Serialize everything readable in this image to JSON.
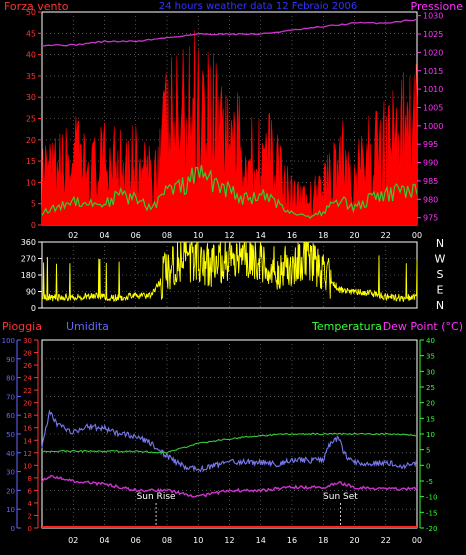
{
  "header": {
    "left_label": "Forza vento",
    "center_title": "24 hours weather data  12 Febraio 2006",
    "right_label": "Pressione"
  },
  "direction_panel": {
    "compass_letters": [
      "N",
      "W",
      "S",
      "E",
      "N"
    ]
  },
  "bottom_header": {
    "pioggia": "Pioggia",
    "umidita": "Umidita",
    "temperatura": "Temperatura",
    "dewpoint": "Dew Point (°C)"
  },
  "annotations": {
    "sunrise": "Sun Rise",
    "sunset": "Sun Set"
  },
  "colors": {
    "background": "#000000",
    "wind_red": "#ff0000",
    "gust_green": "#33cc33",
    "lull_white": "#ccffcc",
    "pressure_magenta": "#cc33cc",
    "direction_yellow": "#ffff00",
    "humidity_blue": "#7777ee",
    "temperature_green": "#33cc33",
    "dewpoint_magenta": "#cc33cc",
    "rain_red": "#ff2222",
    "grid": "#888888",
    "axis_left_red": "#ff3333",
    "axis_right_magenta": "#ff33ff",
    "axis_right_green": "#33ff33",
    "axis_blue": "#6666ff"
  },
  "chart_data": [
    {
      "type": "line",
      "title": "24 hours weather data  12 Febraio 2006",
      "x_tick_labels": [
        "02",
        "04",
        "06",
        "08",
        "10",
        "12",
        "14",
        "16",
        "18",
        "20",
        "22",
        "00"
      ],
      "y_left_ticks": [
        0,
        5,
        10,
        15,
        20,
        25,
        30,
        35,
        40,
        45,
        50
      ],
      "y_left_lim": [
        0,
        50
      ],
      "y_left_label": "Forza vento",
      "y_right_ticks": [
        975,
        980,
        985,
        990,
        995,
        1000,
        1005,
        1010,
        1015,
        1020,
        1025,
        1030
      ],
      "y_right_lim": [
        973,
        1031
      ],
      "y_right_label": "Pressione",
      "series": [
        {
          "name": "Pressione",
          "axis": "right",
          "hours": [
            0,
            2,
            4,
            6,
            8,
            10,
            12,
            14,
            16,
            18,
            20,
            22,
            24
          ],
          "values": [
            1022,
            1022,
            1023,
            1023,
            1024,
            1025,
            1025,
            1025,
            1026,
            1027,
            1028,
            1028,
            1029
          ]
        },
        {
          "axis": "left",
          "hours": [
            0,
            1,
            2,
            3,
            4,
            5,
            6,
            7,
            8,
            9,
            10,
            11,
            12,
            13,
            14,
            15,
            16,
            17,
            18,
            19,
            20,
            21,
            22,
            23,
            24
          ],
          "values": [
            12,
            14,
            18,
            14,
            16,
            20,
            16,
            12,
            26,
            28,
            34,
            30,
            24,
            18,
            20,
            16,
            8,
            6,
            10,
            18,
            12,
            18,
            22,
            24,
            26
          ]
        },
        {
          "axis": "left",
          "hours": [
            0,
            1,
            2,
            3,
            4,
            5,
            6,
            7,
            8,
            9,
            10,
            11,
            12,
            13,
            14,
            15,
            16,
            17,
            18,
            19,
            20,
            21,
            22,
            23,
            24
          ],
          "values": [
            3,
            4,
            6,
            5,
            5,
            7,
            6,
            4,
            8,
            9,
            12,
            10,
            8,
            6,
            7,
            5,
            3,
            2,
            3,
            6,
            4,
            6,
            7,
            8,
            8
          ]
        },
        {
          "axis": "left",
          "hours": [
            0,
            1,
            2,
            3,
            4,
            5,
            6,
            7,
            8,
            9,
            10,
            11,
            12,
            13,
            14,
            15,
            16,
            17,
            18,
            19,
            20,
            21,
            22,
            23,
            24
          ],
          "values": [
            1,
            2,
            3,
            2,
            2,
            3,
            3,
            2,
            4,
            5,
            7,
            6,
            4,
            3,
            4,
            3,
            1,
            1,
            1,
            3,
            2,
            3,
            4,
            5,
            5
          ]
        }
      ]
    },
    {
      "type": "line",
      "x_tick_labels": [
        "02",
        "04",
        "06",
        "08",
        "10",
        "12",
        "14",
        "16",
        "18",
        "20",
        "22",
        "00"
      ],
      "y_left_ticks": [
        0,
        90,
        180,
        270,
        360
      ],
      "y_left_lim": [
        0,
        360
      ],
      "y_right_labels": [
        "N",
        "W",
        "S",
        "E",
        "N"
      ],
      "series": [
        {
          "axis": "left",
          "hours": [
            0,
            1,
            2,
            3,
            4,
            5,
            6,
            7,
            8,
            9,
            10,
            11,
            12,
            13,
            14,
            15,
            16,
            17,
            18,
            19,
            20,
            21,
            22,
            23,
            24
          ],
          "values": [
            60,
            55,
            60,
            65,
            60,
            55,
            70,
            65,
            200,
            260,
            250,
            230,
            270,
            280,
            260,
            210,
            230,
            270,
            200,
            100,
            90,
            80,
            60,
            55,
            60
          ]
        }
      ]
    },
    {
      "type": "line",
      "x_tick_labels": [
        "02",
        "04",
        "06",
        "08",
        "10",
        "12",
        "14",
        "16",
        "18",
        "20",
        "22",
        "00"
      ],
      "humidity_axis": {
        "label": "Umidita",
        "ticks": [
          0,
          10,
          20,
          30,
          40,
          50,
          60,
          70,
          80,
          90,
          100
        ],
        "lim": [
          0,
          100
        ]
      },
      "rain_axis": {
        "label": "Pioggia",
        "ticks": [
          0,
          2,
          4,
          6,
          8,
          10,
          12,
          14,
          16,
          18,
          20,
          22,
          24,
          26,
          28,
          30
        ],
        "lim": [
          0,
          30
        ]
      },
      "temp_axis": {
        "label": "Temperatura",
        "ticks": [
          -20,
          -15,
          -10,
          -5,
          0,
          5,
          10,
          15,
          20,
          25,
          30,
          35,
          40
        ],
        "lim": [
          -20,
          40
        ]
      },
      "dewpoint_axis_label": "Dew Point (°C)",
      "series": [
        {
          "name": "Umidita",
          "axis": "humidity",
          "hours": [
            0,
            0.5,
            1,
            2,
            3,
            4,
            5,
            6,
            7,
            8,
            9,
            10,
            11,
            12,
            13,
            14,
            15,
            16,
            17,
            18,
            18.5,
            19,
            19.5,
            20,
            21,
            22,
            23,
            24
          ],
          "values": [
            44,
            62,
            55,
            51,
            54,
            53,
            50,
            49,
            45,
            38,
            33,
            31,
            33,
            35,
            35,
            35,
            34,
            36,
            36,
            36,
            46,
            48,
            37,
            35,
            34,
            35,
            33,
            34
          ]
        },
        {
          "name": "Temperatura",
          "axis": "temp",
          "hours": [
            0,
            2,
            4,
            6,
            8,
            10,
            12,
            14,
            16,
            18,
            20,
            22,
            24
          ],
          "values": [
            4.5,
            4.5,
            4.5,
            4.5,
            4,
            7,
            8.5,
            9.5,
            10,
            10,
            10,
            10,
            9.5
          ]
        },
        {
          "name": "Dew Point (°C)",
          "axis": "temp",
          "hours": [
            0,
            0.5,
            2,
            4,
            6,
            8,
            10,
            12,
            14,
            16,
            18,
            19,
            20,
            22,
            24
          ],
          "values": [
            -5,
            -3.5,
            -5,
            -6,
            -8,
            -8,
            -10,
            -8,
            -8,
            -7,
            -7,
            -5.5,
            -7,
            -7.5,
            -7.5
          ]
        },
        {
          "name": "Pioggia",
          "axis": "rain",
          "hours": [
            0,
            24
          ],
          "values": [
            0,
            0
          ]
        }
      ],
      "annotations": [
        {
          "label": "Sun Rise",
          "hour": 7.3
        },
        {
          "label": "Sun Set",
          "hour": 19.1
        }
      ]
    }
  ]
}
